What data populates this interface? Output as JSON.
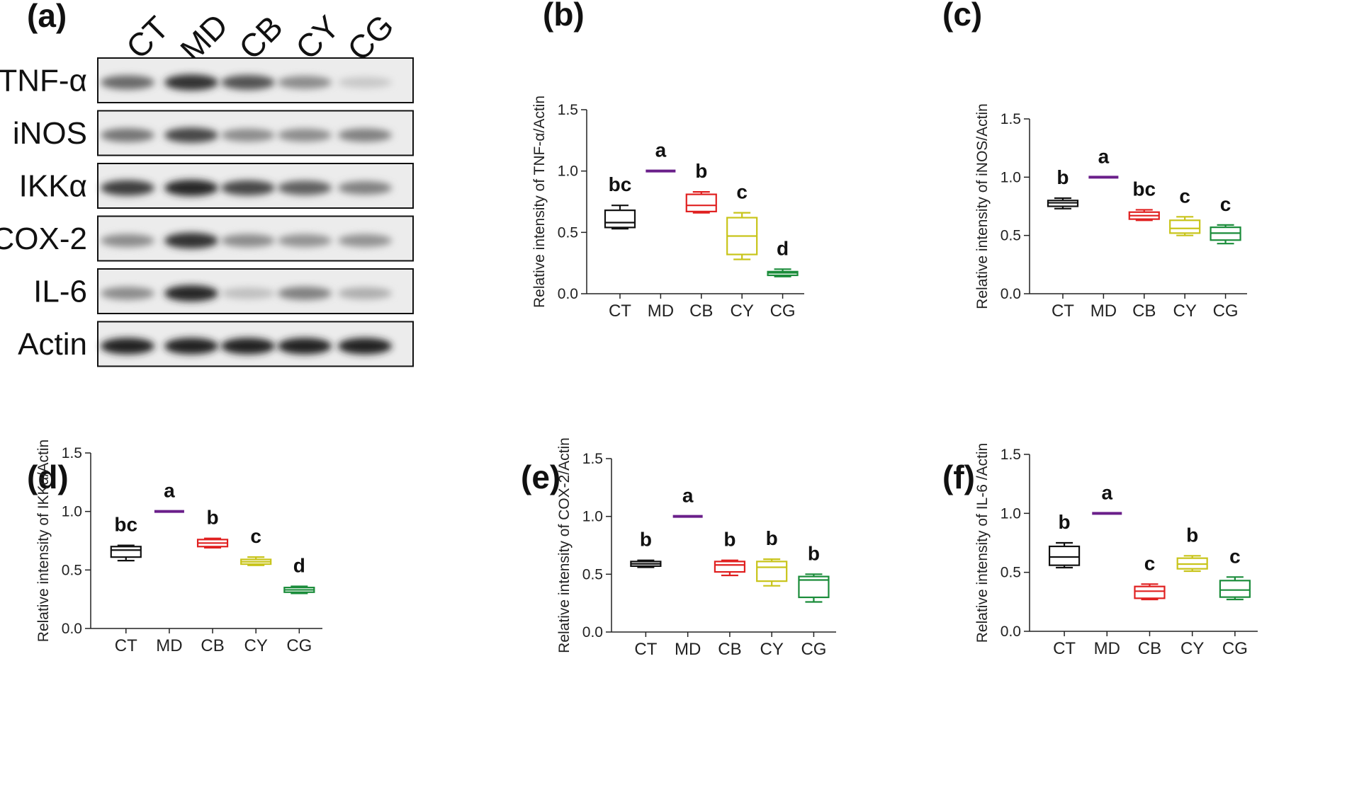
{
  "western_blot": {
    "panel_label": "(a)",
    "lanes": [
      "CT",
      "MD",
      "CB",
      "CY",
      "CG"
    ],
    "proteins": [
      {
        "name": "TNF-α",
        "intensities": [
          0.6,
          0.85,
          0.7,
          0.45,
          0.18
        ]
      },
      {
        "name": "iNOS",
        "intensities": [
          0.55,
          0.75,
          0.45,
          0.45,
          0.5
        ]
      },
      {
        "name": "IKKα",
        "intensities": [
          0.8,
          0.9,
          0.75,
          0.65,
          0.5
        ]
      },
      {
        "name": "COX-2",
        "intensities": [
          0.45,
          0.85,
          0.45,
          0.42,
          0.42
        ]
      },
      {
        "name": "IL-6",
        "intensities": [
          0.45,
          0.9,
          0.22,
          0.5,
          0.3
        ]
      },
      {
        "name": "Actin",
        "intensities": [
          0.92,
          0.92,
          0.92,
          0.92,
          0.92
        ]
      }
    ]
  },
  "group_colors": [
    "#111111",
    "#6a1f8a",
    "#e02020",
    "#c8c41a",
    "#1a8c3a"
  ],
  "chart_data": [
    {
      "id": "b",
      "panel_label": "(b)",
      "type": "boxplot",
      "ylabel": "Relative intensity of TNF-α/Actin",
      "categories": [
        "CT",
        "MD",
        "CB",
        "CY",
        "CG"
      ],
      "ylim": [
        0,
        1.5
      ],
      "yticks": [
        "0.0",
        "0.5",
        "1.0",
        "1.5"
      ],
      "boxes": [
        {
          "min": 0.53,
          "q1": 0.54,
          "median": 0.58,
          "q3": 0.68,
          "max": 0.72
        },
        {
          "min": 1.0,
          "q1": 1.0,
          "median": 1.0,
          "q3": 1.0,
          "max": 1.0
        },
        {
          "min": 0.66,
          "q1": 0.67,
          "median": 0.72,
          "q3": 0.81,
          "max": 0.83
        },
        {
          "min": 0.28,
          "q1": 0.32,
          "median": 0.47,
          "q3": 0.62,
          "max": 0.66
        },
        {
          "min": 0.14,
          "q1": 0.15,
          "median": 0.17,
          "q3": 0.18,
          "max": 0.2
        }
      ],
      "letters": [
        "bc",
        "a",
        "b",
        "c",
        "d"
      ]
    },
    {
      "id": "c",
      "panel_label": "(c)",
      "type": "boxplot",
      "ylabel": "Relative intensity of iNOS/Actin",
      "categories": [
        "CT",
        "MD",
        "CB",
        "CY",
        "CG"
      ],
      "ylim": [
        0,
        1.5
      ],
      "yticks": [
        "0.0",
        "0.5",
        "1.0",
        "1.5"
      ],
      "boxes": [
        {
          "min": 0.73,
          "q1": 0.75,
          "median": 0.78,
          "q3": 0.8,
          "max": 0.82
        },
        {
          "min": 1.0,
          "q1": 1.0,
          "median": 1.0,
          "q3": 1.0,
          "max": 1.0
        },
        {
          "min": 0.63,
          "q1": 0.64,
          "median": 0.67,
          "q3": 0.7,
          "max": 0.72
        },
        {
          "min": 0.5,
          "q1": 0.52,
          "median": 0.56,
          "q3": 0.63,
          "max": 0.66
        },
        {
          "min": 0.43,
          "q1": 0.46,
          "median": 0.52,
          "q3": 0.57,
          "max": 0.59
        }
      ],
      "letters": [
        "b",
        "a",
        "bc",
        "c",
        "c"
      ]
    },
    {
      "id": "d",
      "panel_label": "(d)",
      "type": "boxplot",
      "ylabel": "Relative intensity of IKKα/Actin",
      "categories": [
        "CT",
        "MD",
        "CB",
        "CY",
        "CG"
      ],
      "ylim": [
        0,
        1.5
      ],
      "yticks": [
        "0.0",
        "0.5",
        "1.0",
        "1.5"
      ],
      "boxes": [
        {
          "min": 0.58,
          "q1": 0.61,
          "median": 0.67,
          "q3": 0.7,
          "max": 0.71
        },
        {
          "min": 1.0,
          "q1": 1.0,
          "median": 1.0,
          "q3": 1.0,
          "max": 1.0
        },
        {
          "min": 0.69,
          "q1": 0.7,
          "median": 0.73,
          "q3": 0.76,
          "max": 0.77
        },
        {
          "min": 0.54,
          "q1": 0.55,
          "median": 0.57,
          "q3": 0.59,
          "max": 0.61
        },
        {
          "min": 0.3,
          "q1": 0.31,
          "median": 0.33,
          "q3": 0.35,
          "max": 0.36
        }
      ],
      "letters": [
        "bc",
        "a",
        "b",
        "c",
        "d"
      ]
    },
    {
      "id": "e",
      "panel_label": "(e)",
      "type": "boxplot",
      "ylabel": "Relative intensity of COX-2/Actin",
      "categories": [
        "CT",
        "MD",
        "CB",
        "CY",
        "CG"
      ],
      "ylim": [
        0,
        1.5
      ],
      "yticks": [
        "0.0",
        "0.5",
        "1.0",
        "1.5"
      ],
      "boxes": [
        {
          "min": 0.56,
          "q1": 0.57,
          "median": 0.59,
          "q3": 0.61,
          "max": 0.62
        },
        {
          "min": 1.0,
          "q1": 1.0,
          "median": 1.0,
          "q3": 1.0,
          "max": 1.0
        },
        {
          "min": 0.49,
          "q1": 0.52,
          "median": 0.58,
          "q3": 0.61,
          "max": 0.62
        },
        {
          "min": 0.4,
          "q1": 0.44,
          "median": 0.56,
          "q3": 0.61,
          "max": 0.63
        },
        {
          "min": 0.26,
          "q1": 0.3,
          "median": 0.45,
          "q3": 0.48,
          "max": 0.5
        }
      ],
      "letters": [
        "b",
        "a",
        "b",
        "b",
        "b"
      ]
    },
    {
      "id": "f",
      "panel_label": "(f)",
      "type": "boxplot",
      "ylabel": "Relative intensity of IL-6 /Actin",
      "categories": [
        "CT",
        "MD",
        "CB",
        "CY",
        "CG"
      ],
      "ylim": [
        0,
        1.5
      ],
      "yticks": [
        "0.0",
        "0.5",
        "1.0",
        "1.5"
      ],
      "boxes": [
        {
          "min": 0.54,
          "q1": 0.56,
          "median": 0.63,
          "q3": 0.72,
          "max": 0.75
        },
        {
          "min": 1.0,
          "q1": 1.0,
          "median": 1.0,
          "q3": 1.0,
          "max": 1.0
        },
        {
          "min": 0.27,
          "q1": 0.28,
          "median": 0.34,
          "q3": 0.38,
          "max": 0.4
        },
        {
          "min": 0.51,
          "q1": 0.53,
          "median": 0.57,
          "q3": 0.62,
          "max": 0.64
        },
        {
          "min": 0.27,
          "q1": 0.29,
          "median": 0.35,
          "q3": 0.43,
          "max": 0.46
        }
      ],
      "letters": [
        "b",
        "a",
        "c",
        "b",
        "c"
      ]
    }
  ]
}
